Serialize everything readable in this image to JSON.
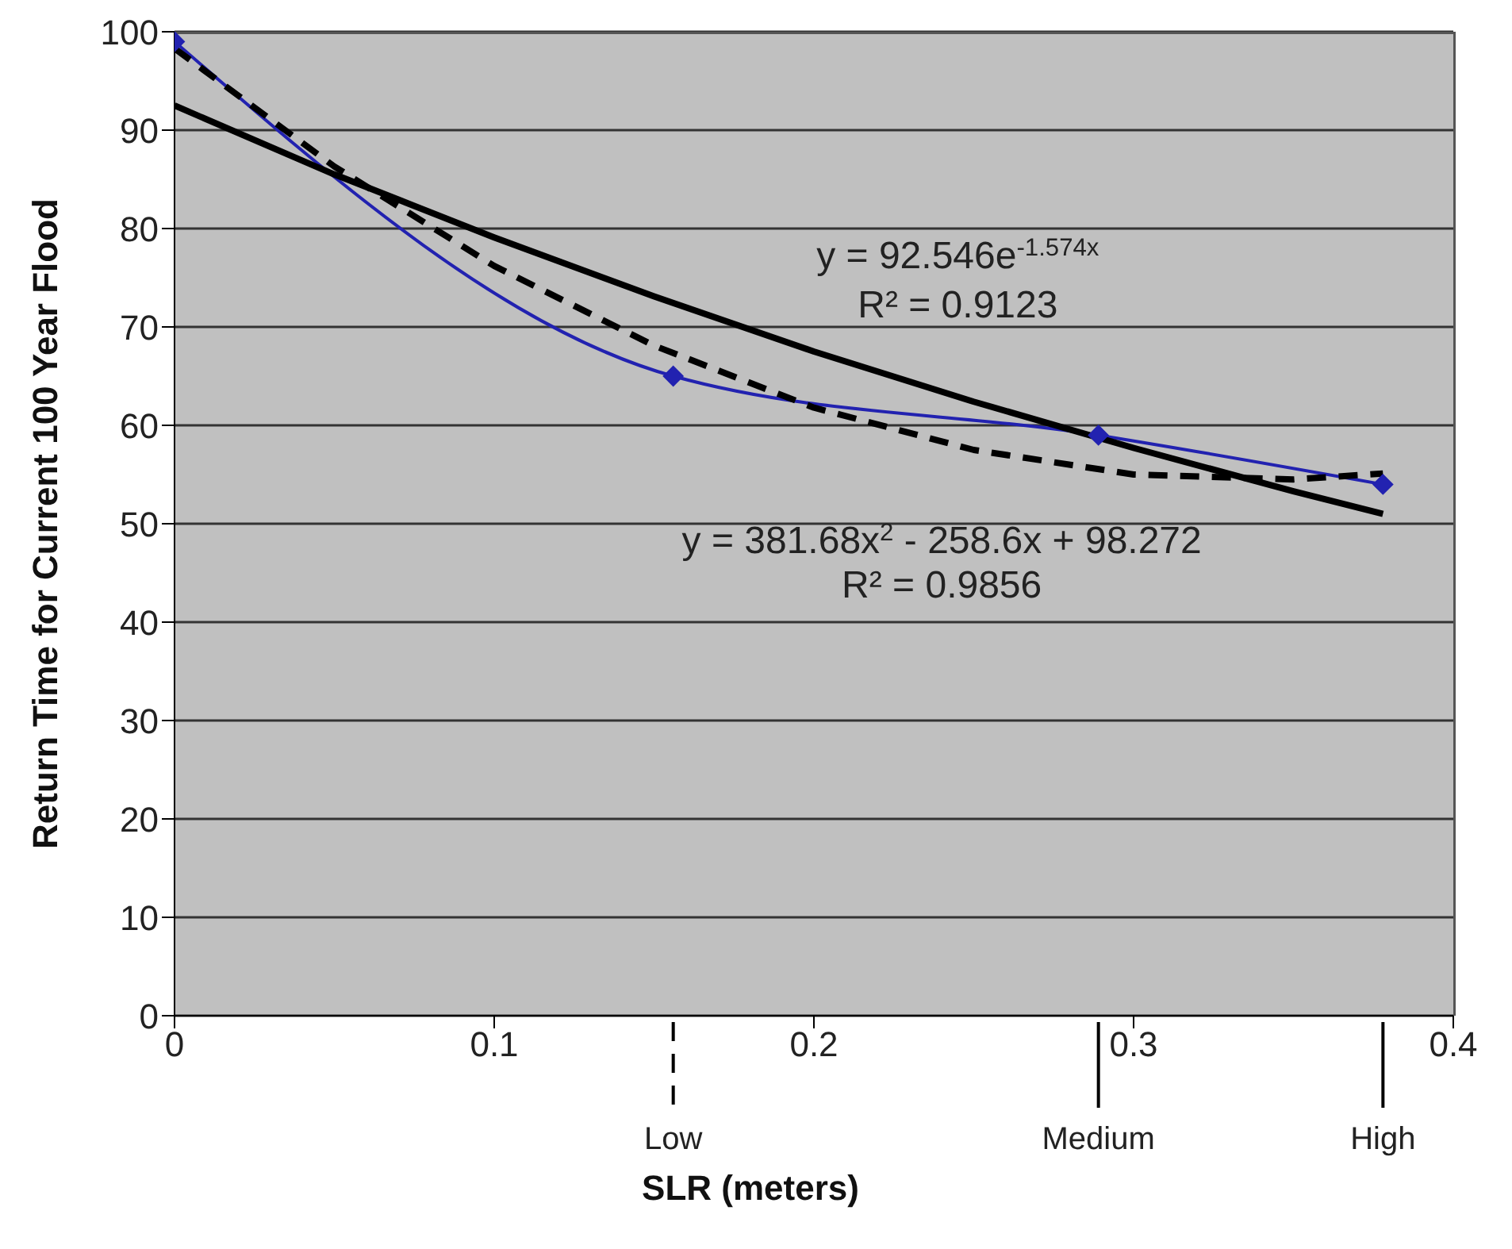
{
  "chart_data": {
    "type": "line",
    "xlabel": "SLR (meters)",
    "ylabel": "Return Time for Current 100 Year Flood",
    "xlim": [
      0,
      0.4
    ],
    "xticks": [
      0,
      0.1,
      0.2,
      0.3,
      0.4
    ],
    "ylim": [
      0,
      100
    ],
    "yticks": [
      0,
      10,
      20,
      30,
      40,
      50,
      60,
      70,
      80,
      90,
      100
    ],
    "ref_lines": [
      {
        "axis": "x",
        "value": 0.156,
        "label": "Low",
        "line_style": "dashed"
      },
      {
        "axis": "x",
        "value": 0.289,
        "label": "Medium",
        "line_style": "solid"
      },
      {
        "axis": "x",
        "value": 0.378,
        "label": "High",
        "line_style": "solid"
      }
    ],
    "grid": "y",
    "series": [
      {
        "type": "line",
        "color": "#2222b0",
        "marker": "diamond",
        "line_style": "solid",
        "x": [
          0,
          0.156,
          0.289,
          0.378
        ],
        "values": [
          99,
          65,
          59,
          54
        ]
      },
      {
        "type": "line",
        "color": "#000000",
        "marker": "none",
        "line_style": "solid",
        "x": [
          0,
          0.05,
          0.1,
          0.15,
          0.2,
          0.25,
          0.3,
          0.35,
          0.378
        ],
        "values": [
          92.5,
          85.5,
          79.1,
          73.1,
          67.5,
          62.4,
          57.7,
          53.3,
          51.0
        ]
      },
      {
        "type": "line",
        "color": "#000000",
        "marker": "none",
        "line_style": "dashed",
        "x": [
          0,
          0.05,
          0.1,
          0.15,
          0.2,
          0.25,
          0.3,
          0.35,
          0.378
        ],
        "values": [
          98.3,
          86.3,
          76.2,
          68.1,
          61.8,
          57.5,
          55.0,
          54.5,
          55.1
        ]
      }
    ],
    "annotations": [
      "y = 92.546e$^{-1.574x}$",
      "R² = 0.9123",
      "y = 381.68x$^{2}$ - 258.6x + 98.272",
      "R² = 0.9856"
    ]
  }
}
